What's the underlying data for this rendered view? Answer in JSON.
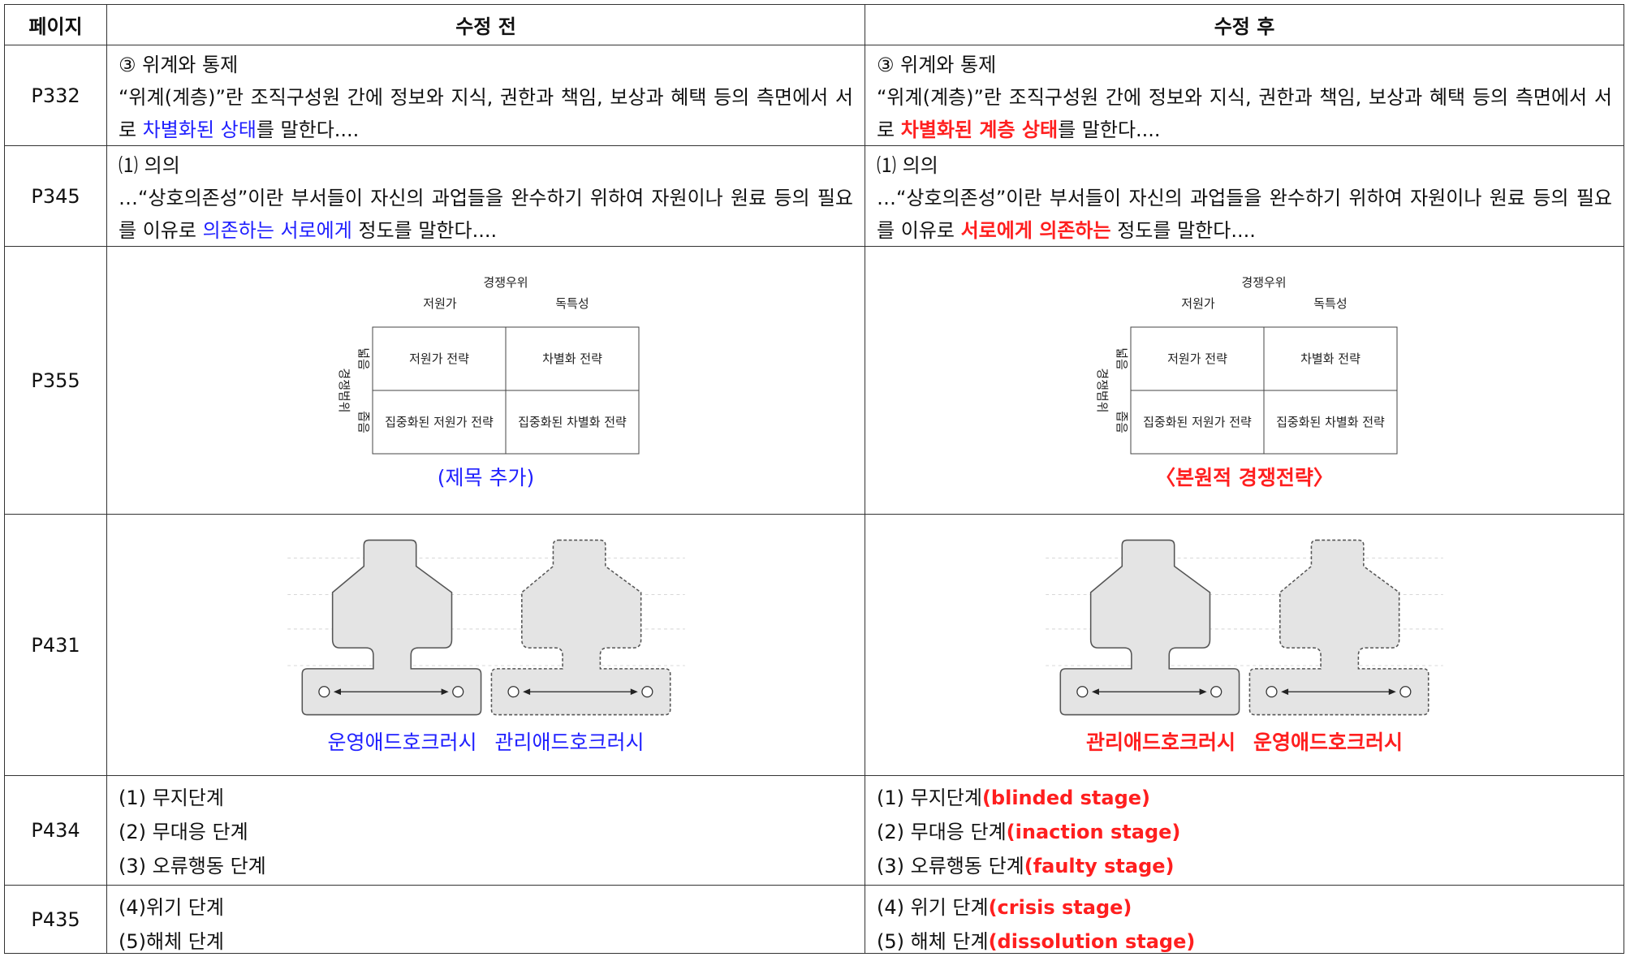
{
  "header": {
    "page": "페이지",
    "before": "수정 전",
    "after": "수정 후"
  },
  "rows": [
    {
      "page": "P332",
      "before": {
        "paragraphs": [
          [
            "③ 위계와 통제"
          ],
          [
            "“위계(계층)”란 조직구성원 간에 정보와 지식, 권한과 책임, 보상과 혜택 등의 측면에서 서로 ",
            {
              "text": "차별화된 상태",
              "color": "#1f1fff"
            },
            "를 말한다...."
          ]
        ]
      },
      "after": {
        "paragraphs": [
          [
            "③ 위계와 통제"
          ],
          [
            "“위계(계층)”란 조직구성원 간에 정보와 지식, 권한과 책임, 보상과 혜택 등의 측면에서 서로 ",
            {
              "text": "차별화된 계층 상태",
              "color": "#ff1f1f",
              "bold": true
            },
            "를 말한다...."
          ]
        ]
      }
    },
    {
      "page": "P345",
      "before": {
        "paragraphs": [
          [
            "⑴ 의의"
          ],
          [
            "…“상호의존성”이란 부서들이 자신의 과업들을 완수하기 위하여 자원이나 원료 등의 필요를 이유로 ",
            {
              "text": "의존하는 서로에게",
              "color": "#1f1fff"
            },
            " 정도를 말한다...."
          ]
        ]
      },
      "after": {
        "paragraphs": [
          [
            "⑴ 의의"
          ],
          [
            "…“상호의존성”이란 부서들이 자신의 과업들을 완수하기 위하여 자원이나 원료 등의 필요를 이유로 ",
            {
              "text": "서로에게 의존하는",
              "color": "#ff1f1f",
              "bold": true
            },
            " 정도를 말한다...."
          ]
        ]
      }
    },
    {
      "page": "P355",
      "before": {
        "matrix": {
          "top": "경쟁우위",
          "cols": [
            "저원가",
            "독특성"
          ],
          "side": "경쟁범위",
          "rows": [
            "넓음",
            "좁음"
          ],
          "cells": [
            [
              "저원가 전략",
              "차별화 전략"
            ],
            [
              "집중화된 저원가 전략",
              "집중화된 차별화 전략"
            ]
          ]
        },
        "caption": [
          {
            "text": "(제목 추가)",
            "color": "#1f1fff"
          }
        ]
      },
      "after": {
        "matrix": {
          "top": "경쟁우위",
          "cols": [
            "저원가",
            "독특성"
          ],
          "side": "경쟁범위",
          "rows": [
            "넓음",
            "좁음"
          ],
          "cells": [
            [
              "저원가 전략",
              "차별화 전략"
            ],
            [
              "집중화된 저원가 전략",
              "집중화된 차별화 전략"
            ]
          ]
        },
        "caption": [
          {
            "text": "〈본원적 경쟁전략〉",
            "color": "#ff1f1f",
            "bold": true
          }
        ]
      }
    },
    {
      "page": "P431",
      "before": {
        "crane": true,
        "caption": [
          {
            "text": "운영애드호크러시",
            "color": "#1f1fff"
          },
          {
            "text": "관리애드호크러시",
            "color": "#1f1fff"
          }
        ]
      },
      "after": {
        "crane": true,
        "caption": [
          {
            "text": "관리애드호크러시",
            "color": "#ff1f1f",
            "bold": true
          },
          {
            "text": "운영애드호크러시",
            "color": "#ff1f1f",
            "bold": true
          }
        ]
      }
    },
    {
      "page": "P434",
      "before": {
        "lines": [
          [
            "(1) 무지단계"
          ],
          [
            "(2) 무대응 단계"
          ],
          [
            "(3) 오류행동 단계"
          ]
        ]
      },
      "after": {
        "lines": [
          [
            "(1) 무지단계",
            {
              "text": "(blinded stage)",
              "color": "#ff1f1f",
              "bold": true
            }
          ],
          [
            "(2) 무대응 단계",
            {
              "text": "(inaction stage)",
              "color": "#ff1f1f",
              "bold": true
            }
          ],
          [
            "(3) 오류행동 단계",
            {
              "text": "(faulty stage)",
              "color": "#ff1f1f",
              "bold": true
            }
          ]
        ]
      }
    },
    {
      "page": "P435",
      "before": {
        "lines": [
          [
            "(4)위기 단계"
          ],
          [
            "(5)해체 단계"
          ]
        ]
      },
      "after": {
        "lines": [
          [
            "(4) 위기 단계",
            {
              "text": "(crisis stage)",
              "color": "#ff1f1f",
              "bold": true
            }
          ],
          [
            "(5) 해체 단계",
            {
              "text": "(dissolution stage)",
              "color": "#ff1f1f",
              "bold": true
            }
          ]
        ]
      }
    }
  ]
}
